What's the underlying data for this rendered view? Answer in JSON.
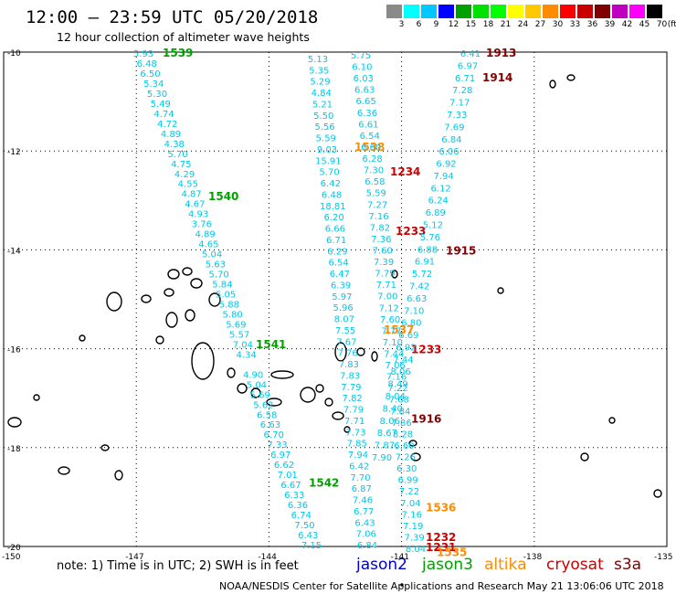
{
  "header": {
    "title": "12:00 – 23:59 UTC 05/20/2018",
    "subtitle": "12 hour collection of altimeter wave heights"
  },
  "legend": {
    "labels": [
      "3",
      "6",
      "9",
      "12",
      "15",
      "18",
      "21",
      "24",
      "27",
      "30",
      "33",
      "36",
      "39",
      "42",
      "45",
      "70",
      "(ft)"
    ],
    "colors": [
      "#8a8a8a",
      "#00ffff",
      "#00c8ff",
      "#0000ff",
      "#00a000",
      "#00e000",
      "#00ff00",
      "#ffff00",
      "#ffc800",
      "#ff8c00",
      "#ff0000",
      "#c80000",
      "#800000",
      "#c000c0",
      "#ff00ff",
      "#000000"
    ]
  },
  "footer": {
    "note": "note:  1) Time is in UTC;  2) SWH is in feet",
    "credit": "NOAA/NESDIS Center for Satellite Applications and Research     May 21 13:06:06 UTC 2018"
  },
  "satellites": [
    {
      "name": "jason2",
      "color": "#0000cc"
    },
    {
      "name": "jason3",
      "color": "#00a000"
    },
    {
      "name": "altika",
      "color": "#ff8c00"
    },
    {
      "name": "cryosat",
      "color": "#cc0000"
    },
    {
      "name": "s3a",
      "color": "#800000"
    }
  ],
  "map": {
    "lat_labels": [
      "-10",
      "-12",
      "-14",
      "-16",
      "-18",
      "-20"
    ],
    "lon_labels": [
      "-150",
      "-147",
      "-144",
      "-141",
      "-138",
      "-135"
    ],
    "lat_values": [
      -10,
      -12,
      -14,
      -16,
      -18,
      -20
    ],
    "lon_values": [
      -150,
      -147,
      -144,
      -141,
      -138,
      -135
    ]
  },
  "tracks": [
    {
      "name": "track-1539",
      "times": [
        {
          "label": "1539",
          "color": "#00a000",
          "lat": -10.0
        },
        {
          "label": "1540",
          "color": "#00a000",
          "lat": -12.9
        },
        {
          "label": "1541",
          "color": "#00a000",
          "lat": -15.9
        },
        {
          "label": "1542",
          "color": "#00a000",
          "lat": -18.7
        }
      ],
      "values": [
        "5.93",
        "6.48",
        "6.50",
        "5.34",
        "5.30",
        "5.49",
        "4.74",
        "4.72",
        "4.89",
        "4.38",
        "5.70",
        "4.75",
        "4.29",
        "4.55",
        "4.87",
        "4.67",
        "4.93",
        "3.76",
        "4.89",
        "4.65",
        "5.04",
        "5.63",
        "5.70",
        "5.84",
        "5.05",
        "5.88",
        "5.80",
        "5.69",
        "5.57",
        "7.04",
        "4.34",
        "",
        "4.90",
        "5.04",
        "5.69",
        "5.62",
        "6.58",
        "6.63",
        "6.70",
        "7.33",
        "6.97",
        "6.62",
        "7.01",
        "6.67",
        "6.33",
        "6.36",
        "6.74",
        "7.50",
        "6.43",
        "7.15"
      ]
    },
    {
      "name": "track-1233",
      "times": [
        {
          "label": "1538",
          "color": "#ff8c00",
          "lat": -11.9
        },
        {
          "label": "1234",
          "color": "#cc0000",
          "lat": -12.4
        },
        {
          "label": "1233",
          "color": "#cc0000",
          "lat": -13.6
        },
        {
          "label": "1537",
          "color": "#ff8c00",
          "lat": -15.6
        },
        {
          "label": "1233",
          "color": "#cc0000",
          "lat": -16.0
        }
      ],
      "values": [
        "5.13",
        "5.35",
        "5.29",
        "4.84",
        "5.21",
        "5.50",
        "5.56",
        "5.59",
        "9.03",
        "15.91",
        "5.70",
        "6.42",
        "6.48",
        "18.81",
        "6.20",
        "6.66",
        "6.71",
        "6.29",
        "6.54",
        "6.47",
        "6.39",
        "5.97",
        "5.96",
        "8.07",
        "7.55",
        "7.67",
        "7.76",
        "7.83",
        "7.83",
        "7.79",
        "7.82",
        "7.79",
        "7.71",
        "7.73",
        "7.85",
        "7.94",
        "6.42",
        "7.70",
        "6.87",
        "7.46",
        "6.77",
        "6.43",
        "7.06",
        "6.84"
      ]
    },
    {
      "name": "track-1536",
      "times": [
        {
          "label": "1536",
          "color": "#ff8c00",
          "lat": -19.2
        },
        {
          "label": "1232",
          "color": "#cc0000",
          "lat": -19.8
        },
        {
          "label": "1231",
          "color": "#cc0000",
          "lat": -20.0
        },
        {
          "label": "1535",
          "color": "#ff8c00",
          "lat": -20.1
        }
      ],
      "values": [
        "5.75",
        "6.10",
        "6.03",
        "6.63",
        "6.65",
        "6.36",
        "6.61",
        "6.54",
        "6.60",
        "6.28",
        "7.30",
        "6.58",
        "5.59",
        "7.27",
        "7.16",
        "7.82",
        "7.36",
        "7.60",
        "7.39",
        "7.79",
        "7.71",
        "7.00",
        "7.12",
        "7.60",
        "7.77",
        "7.10",
        "7.44",
        "7.06",
        "7.16",
        "7.22",
        "7.68",
        "7.84",
        "7.86",
        "8.28",
        "6.60",
        "7.26",
        "6.30",
        "6.99",
        "7.22",
        "7.04",
        "7.16",
        "7.19",
        "7.39",
        "8.04"
      ]
    },
    {
      "name": "track-1913",
      "times": [
        {
          "label": "1913",
          "color": "#800000",
          "lat": -10.0
        },
        {
          "label": "1914",
          "color": "#800000",
          "lat": -10.5
        },
        {
          "label": "1915",
          "color": "#800000",
          "lat": -14.0
        },
        {
          "label": "1916",
          "color": "#800000",
          "lat": -17.4
        }
      ],
      "values": [
        "6.41",
        "6.97",
        "6.71",
        "7.28",
        "7.17",
        "7.33",
        "7.69",
        "6.84",
        "6.06",
        "6.92",
        "7.94",
        "6.12",
        "6.24",
        "6.89",
        "5.12",
        "5.76",
        "6.88",
        "6.91",
        "5.72",
        "7.42",
        "6.63",
        "7.10",
        "6.80",
        "6.69",
        "6.92",
        "7.44",
        "8.06",
        "8.49",
        "8.04",
        "8.40",
        "8.06",
        "8.67",
        "7.87",
        "7.90"
      ]
    }
  ]
}
